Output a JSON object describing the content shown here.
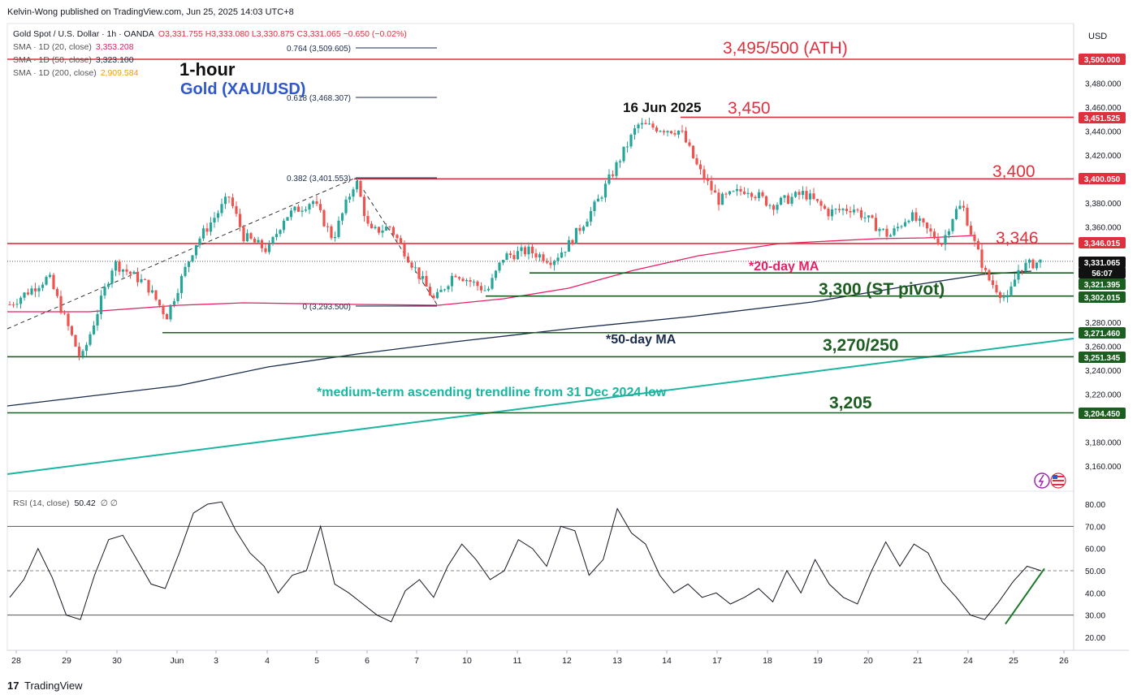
{
  "header": {
    "publisher": "Kelvin-Wong published on TradingView.com, Jun 25, 2025 14:03 UTC+8",
    "symbol": "Gold Spot / U.S. Dollar · 1h · OANDA",
    "ohlc": "O3,331.755 H3,333.080 L3,330.875 C3,331.065 −0.650 (−0.02%)",
    "sma20_label": "SMA · 1D (20, close)",
    "sma20_value": "3,353.208",
    "sma50_label": "SMA · 1D (50, close)",
    "sma50_value": "3,323.100",
    "sma200_label": "SMA · 1D (200, close)",
    "sma200_value": "2,909.584",
    "timeframe_title": "1-hour",
    "instrument_title": "Gold (XAU/USD)",
    "currency": "USD"
  },
  "annotations": {
    "ath": "3,495/500 (ATH)",
    "r3450": "3,450",
    "r3400": "3,400",
    "r3346": "3,346",
    "pivot": "3,300 (ST pivot)",
    "s3270": "3,270/250",
    "s3205": "3,205",
    "date_label": "16 Jun 2025",
    "ma20_label": "*20-day MA",
    "ma50_label": "*50-day MA",
    "trendline_label": "*medium-term ascending trendline from 31 Dec 2024 low",
    "fib_0764": "0.764 (3,509.605)",
    "fib_0618": "0.618 (3,468.307)",
    "fib_0382": "0.382 (3,401.553)",
    "fib_0": "0 (3,293.500)"
  },
  "price_axis": {
    "ticks": [
      "3,480.000",
      "3,460.000",
      "3,440.000",
      "3,420.000",
      "3,380.000",
      "3,360.000",
      "3,280.000",
      "3,260.000",
      "3,240.000",
      "3,220.000",
      "3,180.000",
      "3,160.000"
    ],
    "tags": [
      {
        "label": "3,500.000",
        "color": "#e0303e"
      },
      {
        "label": "3,451.525",
        "color": "#e0303e"
      },
      {
        "label": "3,400.050",
        "color": "#e0303e"
      },
      {
        "label": "3,346.015",
        "color": "#e0303e"
      },
      {
        "label": "3,331.065",
        "color": "#111111"
      },
      {
        "label": "56:07",
        "color": "#111111"
      },
      {
        "label": "3,321.395",
        "color": "#1b5e20"
      },
      {
        "label": "3,302.015",
        "color": "#1b5e20"
      },
      {
        "label": "3,271.460",
        "color": "#1b5e20"
      },
      {
        "label": "3,251.345",
        "color": "#1b5e20"
      },
      {
        "label": "3,204.450",
        "color": "#1b5e20"
      }
    ]
  },
  "rsi": {
    "label": "RSI (14, close)",
    "value": "50.42",
    "extra": "∅ ∅",
    "ticks": [
      "80.00",
      "70.00",
      "60.00",
      "50.00",
      "40.00",
      "30.00",
      "20.00"
    ]
  },
  "time_axis": [
    "28",
    "29",
    "30",
    "Jun",
    "3",
    "4",
    "5",
    "6",
    "7",
    "10",
    "11",
    "12",
    "13",
    "14",
    "17",
    "18",
    "19",
    "20",
    "21",
    "24",
    "25",
    "26"
  ],
  "footer": {
    "brand": "TradingView"
  },
  "colors": {
    "candle_up": "#26a69a",
    "candle_down": "#ef5350",
    "resistance": "#e0303e",
    "support": "#1b5e20",
    "ma20": "#e91e63",
    "ma50": "#1a2b4c",
    "trendline": "#1bb5a0"
  },
  "chart_data": {
    "type": "candlestick",
    "title": "Gold (XAU/USD)",
    "subtitle": "1-hour",
    "ylim": [
      3150,
      3515
    ],
    "key_levels": [
      3500,
      3451.525,
      3400.05,
      3346.015,
      3321.395,
      3302.015,
      3271.46,
      3251.345,
      3204.45
    ],
    "last_price": 3331.065,
    "fib_levels": [
      {
        "ratio": 0.764,
        "price": 3509.605
      },
      {
        "ratio": 0.618,
        "price": 3468.307
      },
      {
        "ratio": 0.382,
        "price": 3401.553
      },
      {
        "ratio": 0,
        "price": 3293.5
      }
    ],
    "price_path": {
      "x_dates": [
        "28",
        "29",
        "29",
        "30",
        "30",
        "Jun",
        "Jun",
        "3",
        "3",
        "4",
        "4",
        "5",
        "5",
        "6",
        "6",
        "7",
        "7",
        "10",
        "10",
        "11",
        "11",
        "12",
        "12",
        "13",
        "13",
        "14",
        "14",
        "17",
        "17",
        "18",
        "18",
        "19",
        "19",
        "20",
        "20",
        "21",
        "21",
        "24",
        "24",
        "24",
        "25",
        "25",
        "25"
      ],
      "close": [
        3295,
        3318,
        3248,
        3330,
        3312,
        3285,
        3345,
        3385,
        3352,
        3340,
        3368,
        3382,
        3350,
        3400,
        3355,
        3360,
        3298,
        3322,
        3306,
        3335,
        3340,
        3332,
        3345,
        3380,
        3445,
        3440,
        3408,
        3382,
        3392,
        3378,
        3388,
        3372,
        3376,
        3352,
        3370,
        3346,
        3372,
        3378,
        3346,
        3318,
        3298,
        3326,
        3331
      ]
    },
    "rsi_series": {
      "name": "RSI (14, close)",
      "ylim": [
        15,
        85
      ],
      "levels": [
        70,
        50,
        30
      ],
      "values": [
        38,
        46,
        60,
        47,
        30,
        28,
        48,
        64,
        66,
        55,
        44,
        42,
        58,
        76,
        80,
        81,
        68,
        58,
        52,
        40,
        48,
        50,
        70,
        44,
        40,
        35,
        30,
        27,
        41,
        46,
        38,
        52,
        62,
        55,
        46,
        50,
        64,
        60,
        52,
        70,
        68,
        48,
        55,
        78,
        67,
        62,
        48,
        40,
        44,
        38,
        40,
        35,
        38,
        42,
        36,
        50,
        40,
        55,
        44,
        38,
        35,
        50,
        63,
        52,
        62,
        58,
        45,
        38,
        30,
        28,
        36,
        45,
        52,
        50
      ]
    },
    "ma20": {
      "name": "*20-day MA",
      "values": [
        3287,
        3287,
        3288,
        3289,
        3291,
        3296,
        3313,
        3340,
        3346,
        3350,
        3342,
        3331
      ]
    },
    "ma50": {
      "name": "*50-day MA",
      "values": [
        3208,
        3218,
        3228,
        3250,
        3270,
        3280,
        3292,
        3310,
        3331
      ]
    },
    "trendline": {
      "name": "*medium-term ascending trendline from 31 Dec 2024 low",
      "values": [
        3150,
        3180,
        3210,
        3240,
        3265
      ]
    }
  }
}
